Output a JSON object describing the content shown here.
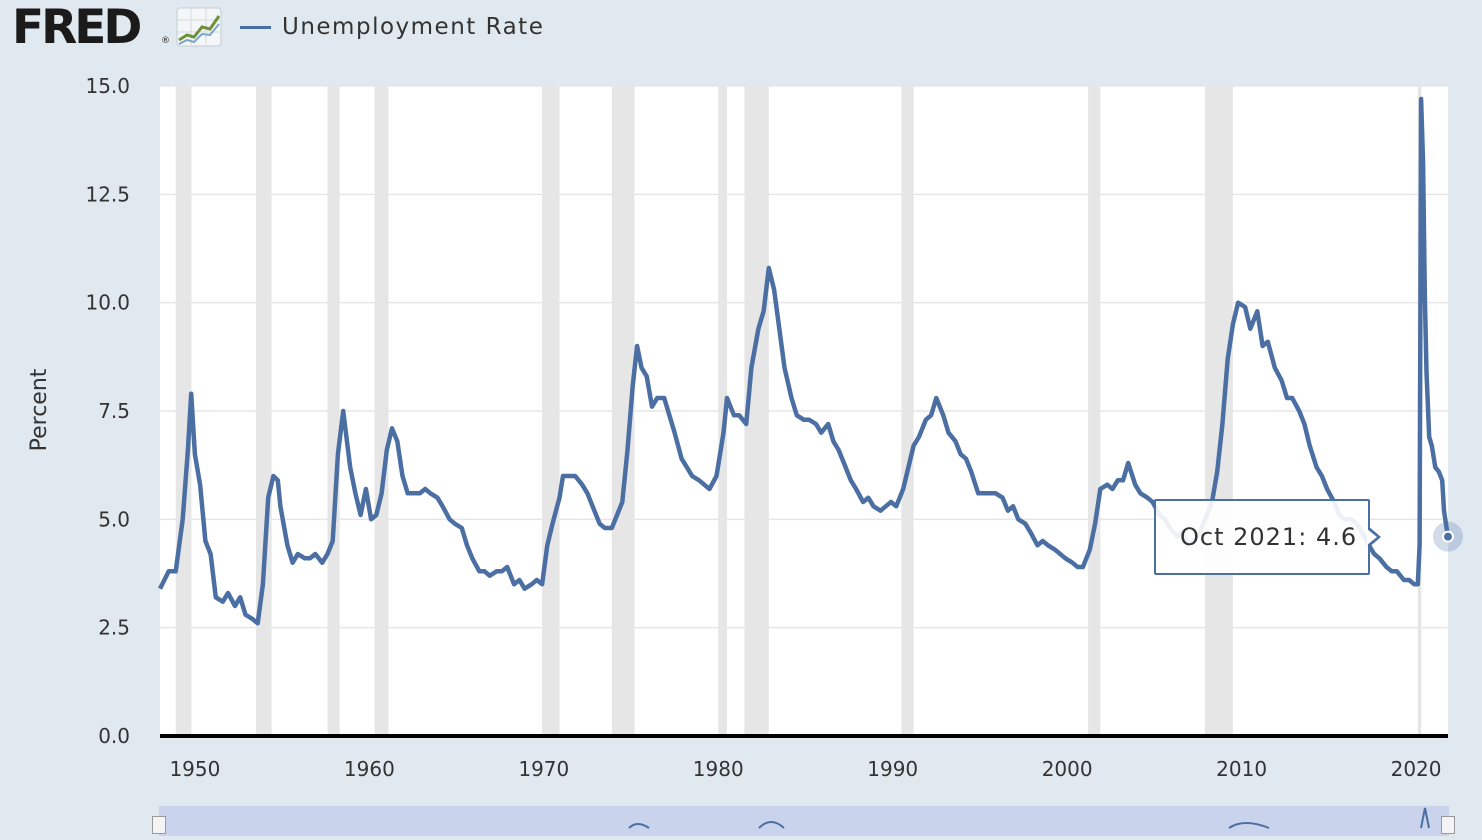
{
  "brand": {
    "logo_text": "FRED",
    "logo_mark": "®",
    "logo_icon": "line-graph-icon"
  },
  "colors": {
    "series": "#4c6fa3",
    "recession": "#e6e6e6",
    "background": "#e1e9f0",
    "plot": "#ffffff"
  },
  "chart_data": {
    "type": "line",
    "title": "",
    "ylabel": "Percent",
    "xlabel": "",
    "series": [
      {
        "name": "Unemployment Rate",
        "color": "#4c6fa3"
      }
    ],
    "xlim": [
      1948.0,
      2021.83
    ],
    "ylim": [
      0,
      15
    ],
    "x_ticks": [
      "1950",
      "1960",
      "1970",
      "1980",
      "1990",
      "2000",
      "2010",
      "2020"
    ],
    "y_ticks": [
      "0.0",
      "2.5",
      "5.0",
      "7.5",
      "10.0",
      "12.5",
      "15.0"
    ],
    "grid": true,
    "legend": "top-left",
    "recessions": [
      [
        1948.9,
        1949.8
      ],
      [
        1953.5,
        1954.4
      ],
      [
        1957.6,
        1958.3
      ],
      [
        1960.3,
        1961.1
      ],
      [
        1969.9,
        1970.9
      ],
      [
        1973.9,
        1975.2
      ],
      [
        1980.0,
        1980.5
      ],
      [
        1981.5,
        1982.9
      ],
      [
        1990.5,
        1991.2
      ],
      [
        2001.2,
        2001.9
      ],
      [
        2007.9,
        2009.5
      ],
      [
        2020.1,
        2020.3
      ]
    ],
    "points": [
      [
        1948.0,
        3.4
      ],
      [
        1948.5,
        3.8
      ],
      [
        1948.9,
        3.8
      ],
      [
        1949.3,
        5.0
      ],
      [
        1949.6,
        6.6
      ],
      [
        1949.79,
        7.9
      ],
      [
        1950.0,
        6.5
      ],
      [
        1950.3,
        5.8
      ],
      [
        1950.6,
        4.5
      ],
      [
        1950.9,
        4.2
      ],
      [
        1951.2,
        3.2
      ],
      [
        1951.6,
        3.1
      ],
      [
        1951.9,
        3.3
      ],
      [
        1952.3,
        3.0
      ],
      [
        1952.6,
        3.2
      ],
      [
        1952.9,
        2.8
      ],
      [
        1953.3,
        2.7
      ],
      [
        1953.6,
        2.6
      ],
      [
        1953.9,
        3.5
      ],
      [
        1954.2,
        5.5
      ],
      [
        1954.5,
        6.0
      ],
      [
        1954.75,
        5.9
      ],
      [
        1954.9,
        5.3
      ],
      [
        1955.3,
        4.4
      ],
      [
        1955.6,
        4.0
      ],
      [
        1955.9,
        4.2
      ],
      [
        1956.3,
        4.1
      ],
      [
        1956.6,
        4.1
      ],
      [
        1956.9,
        4.2
      ],
      [
        1957.3,
        4.0
      ],
      [
        1957.6,
        4.2
      ],
      [
        1957.9,
        4.5
      ],
      [
        1958.2,
        6.5
      ],
      [
        1958.5,
        7.5
      ],
      [
        1958.9,
        6.2
      ],
      [
        1959.2,
        5.6
      ],
      [
        1959.5,
        5.1
      ],
      [
        1959.8,
        5.7
      ],
      [
        1960.1,
        5.0
      ],
      [
        1960.4,
        5.1
      ],
      [
        1960.7,
        5.6
      ],
      [
        1961.0,
        6.6
      ],
      [
        1961.3,
        7.1
      ],
      [
        1961.6,
        6.8
      ],
      [
        1961.9,
        6.0
      ],
      [
        1962.2,
        5.6
      ],
      [
        1962.5,
        5.6
      ],
      [
        1962.9,
        5.6
      ],
      [
        1963.2,
        5.7
      ],
      [
        1963.5,
        5.6
      ],
      [
        1963.9,
        5.5
      ],
      [
        1964.2,
        5.3
      ],
      [
        1964.6,
        5.0
      ],
      [
        1964.9,
        4.9
      ],
      [
        1965.3,
        4.8
      ],
      [
        1965.6,
        4.4
      ],
      [
        1965.9,
        4.1
      ],
      [
        1966.3,
        3.8
      ],
      [
        1966.6,
        3.8
      ],
      [
        1966.9,
        3.7
      ],
      [
        1967.3,
        3.8
      ],
      [
        1967.6,
        3.8
      ],
      [
        1967.9,
        3.9
      ],
      [
        1968.3,
        3.5
      ],
      [
        1968.6,
        3.6
      ],
      [
        1968.9,
        3.4
      ],
      [
        1969.3,
        3.5
      ],
      [
        1969.6,
        3.6
      ],
      [
        1969.9,
        3.5
      ],
      [
        1970.2,
        4.4
      ],
      [
        1970.5,
        4.9
      ],
      [
        1970.9,
        5.5
      ],
      [
        1971.1,
        6.0
      ],
      [
        1971.5,
        6.0
      ],
      [
        1971.8,
        6.0
      ],
      [
        1972.2,
        5.8
      ],
      [
        1972.5,
        5.6
      ],
      [
        1972.8,
        5.3
      ],
      [
        1973.2,
        4.9
      ],
      [
        1973.5,
        4.8
      ],
      [
        1973.9,
        4.8
      ],
      [
        1974.2,
        5.1
      ],
      [
        1974.5,
        5.4
      ],
      [
        1974.8,
        6.6
      ],
      [
        1975.1,
        8.1
      ],
      [
        1975.35,
        9.0
      ],
      [
        1975.6,
        8.5
      ],
      [
        1975.9,
        8.3
      ],
      [
        1976.2,
        7.6
      ],
      [
        1976.5,
        7.8
      ],
      [
        1976.9,
        7.8
      ],
      [
        1977.2,
        7.4
      ],
      [
        1977.5,
        7.0
      ],
      [
        1977.9,
        6.4
      ],
      [
        1978.2,
        6.2
      ],
      [
        1978.5,
        6.0
      ],
      [
        1978.9,
        5.9
      ],
      [
        1979.2,
        5.8
      ],
      [
        1979.5,
        5.7
      ],
      [
        1979.9,
        6.0
      ],
      [
        1980.3,
        7.0
      ],
      [
        1980.5,
        7.8
      ],
      [
        1980.9,
        7.4
      ],
      [
        1981.2,
        7.4
      ],
      [
        1981.6,
        7.2
      ],
      [
        1981.9,
        8.5
      ],
      [
        1982.3,
        9.4
      ],
      [
        1982.6,
        9.8
      ],
      [
        1982.9,
        10.8
      ],
      [
        1983.2,
        10.3
      ],
      [
        1983.5,
        9.4
      ],
      [
        1983.8,
        8.5
      ],
      [
        1984.2,
        7.8
      ],
      [
        1984.5,
        7.4
      ],
      [
        1984.9,
        7.3
      ],
      [
        1985.2,
        7.3
      ],
      [
        1985.6,
        7.2
      ],
      [
        1985.9,
        7.0
      ],
      [
        1986.3,
        7.2
      ],
      [
        1986.6,
        6.8
      ],
      [
        1986.9,
        6.6
      ],
      [
        1987.2,
        6.3
      ],
      [
        1987.6,
        5.9
      ],
      [
        1987.9,
        5.7
      ],
      [
        1988.3,
        5.4
      ],
      [
        1988.6,
        5.5
      ],
      [
        1988.9,
        5.3
      ],
      [
        1989.3,
        5.2
      ],
      [
        1989.6,
        5.3
      ],
      [
        1989.9,
        5.4
      ],
      [
        1990.2,
        5.3
      ],
      [
        1990.6,
        5.7
      ],
      [
        1990.9,
        6.2
      ],
      [
        1991.2,
        6.7
      ],
      [
        1991.5,
        6.9
      ],
      [
        1991.9,
        7.3
      ],
      [
        1992.2,
        7.4
      ],
      [
        1992.5,
        7.8
      ],
      [
        1992.9,
        7.4
      ],
      [
        1993.2,
        7.0
      ],
      [
        1993.6,
        6.8
      ],
      [
        1993.9,
        6.5
      ],
      [
        1994.2,
        6.4
      ],
      [
        1994.5,
        6.1
      ],
      [
        1994.9,
        5.6
      ],
      [
        1995.2,
        5.6
      ],
      [
        1995.6,
        5.6
      ],
      [
        1995.9,
        5.6
      ],
      [
        1996.3,
        5.5
      ],
      [
        1996.6,
        5.2
      ],
      [
        1996.9,
        5.3
      ],
      [
        1997.2,
        5.0
      ],
      [
        1997.6,
        4.9
      ],
      [
        1997.9,
        4.7
      ],
      [
        1998.3,
        4.4
      ],
      [
        1998.6,
        4.5
      ],
      [
        1998.9,
        4.4
      ],
      [
        1999.3,
        4.3
      ],
      [
        1999.6,
        4.2
      ],
      [
        1999.9,
        4.1
      ],
      [
        2000.3,
        4.0
      ],
      [
        2000.6,
        3.9
      ],
      [
        2000.9,
        3.9
      ],
      [
        2001.3,
        4.3
      ],
      [
        2001.6,
        4.9
      ],
      [
        2001.9,
        5.7
      ],
      [
        2002.3,
        5.8
      ],
      [
        2002.6,
        5.7
      ],
      [
        2002.9,
        5.9
      ],
      [
        2003.2,
        5.9
      ],
      [
        2003.5,
        6.3
      ],
      [
        2003.9,
        5.8
      ],
      [
        2004.2,
        5.6
      ],
      [
        2004.6,
        5.5
      ],
      [
        2004.9,
        5.4
      ],
      [
        2005.3,
        5.1
      ],
      [
        2005.6,
        5.0
      ],
      [
        2005.9,
        4.8
      ],
      [
        2006.3,
        4.6
      ],
      [
        2006.6,
        4.7
      ],
      [
        2006.9,
        4.4
      ],
      [
        2007.3,
        4.5
      ],
      [
        2007.6,
        4.7
      ],
      [
        2007.9,
        5.0
      ],
      [
        2008.3,
        5.4
      ],
      [
        2008.6,
        6.1
      ],
      [
        2008.9,
        7.2
      ],
      [
        2009.2,
        8.7
      ],
      [
        2009.5,
        9.5
      ],
      [
        2009.8,
        10.0
      ],
      [
        2010.2,
        9.9
      ],
      [
        2010.5,
        9.4
      ],
      [
        2010.9,
        9.8
      ],
      [
        2011.2,
        9.0
      ],
      [
        2011.5,
        9.1
      ],
      [
        2011.9,
        8.5
      ],
      [
        2012.3,
        8.2
      ],
      [
        2012.6,
        7.8
      ],
      [
        2012.9,
        7.8
      ],
      [
        2013.3,
        7.5
      ],
      [
        2013.6,
        7.2
      ],
      [
        2013.9,
        6.7
      ],
      [
        2014.3,
        6.2
      ],
      [
        2014.6,
        6.0
      ],
      [
        2014.9,
        5.7
      ],
      [
        2015.3,
        5.4
      ],
      [
        2015.6,
        5.1
      ],
      [
        2015.9,
        5.0
      ],
      [
        2016.3,
        5.0
      ],
      [
        2016.6,
        4.9
      ],
      [
        2016.9,
        4.7
      ],
      [
        2017.3,
        4.4
      ],
      [
        2017.6,
        4.2
      ],
      [
        2017.9,
        4.1
      ],
      [
        2018.3,
        3.9
      ],
      [
        2018.6,
        3.8
      ],
      [
        2018.9,
        3.8
      ],
      [
        2019.3,
        3.6
      ],
      [
        2019.6,
        3.6
      ],
      [
        2019.9,
        3.5
      ],
      [
        2020.1,
        3.5
      ],
      [
        2020.2,
        4.4
      ],
      [
        2020.29,
        14.7
      ],
      [
        2020.4,
        13.2
      ],
      [
        2020.5,
        10.2
      ],
      [
        2020.6,
        8.4
      ],
      [
        2020.75,
        6.9
      ],
      [
        2020.9,
        6.7
      ],
      [
        2021.1,
        6.2
      ],
      [
        2021.3,
        6.1
      ],
      [
        2021.5,
        5.9
      ],
      [
        2021.6,
        5.2
      ],
      [
        2021.75,
        4.8
      ],
      [
        2021.83,
        4.6
      ]
    ]
  },
  "tooltip": {
    "date": "Oct 2021",
    "separator": ":",
    "value": "4.6"
  }
}
